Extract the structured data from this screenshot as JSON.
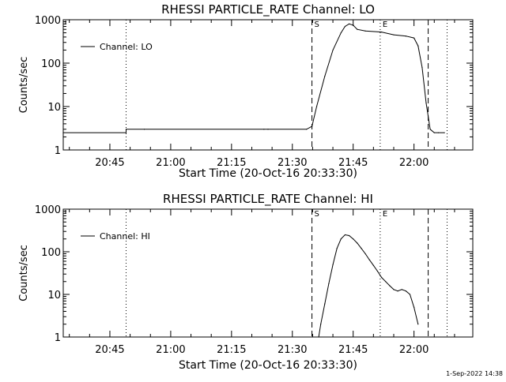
{
  "footer_timestamp": "1-Sep-2022 14:38",
  "colors": {
    "background": "#ffffff",
    "foreground": "#000000"
  },
  "chart_data": [
    {
      "type": "line",
      "title": "RHESSI PARTICLE_RATE Channel: LO",
      "xlabel": "Start Time (20-Oct-16 20:33:30)",
      "ylabel": "Counts/sec",
      "y_scale": "log",
      "ylim": [
        1,
        1000
      ],
      "xlim": [
        "20:33:30",
        "22:14:30"
      ],
      "x_ticks": [
        "20:45",
        "21:00",
        "21:15",
        "21:30",
        "21:45",
        "22:00"
      ],
      "y_ticks": [
        "1",
        "10",
        "100",
        "1000"
      ],
      "legend": {
        "label": "Channel: LO",
        "placement": "top-left"
      },
      "grid": false,
      "markers": [
        {
          "time": "20:49:00",
          "style": "dotted",
          "label": ""
        },
        {
          "time": "21:34:50",
          "style": "dashed",
          "label": "S"
        },
        {
          "time": "21:51:40",
          "style": "dotted",
          "label": "E"
        },
        {
          "time": "22:03:30",
          "style": "dashed",
          "label": ""
        },
        {
          "time": "22:08:10",
          "style": "dotted",
          "label": ""
        }
      ],
      "series": [
        {
          "name": "Channel: LO",
          "x": [
            "20:33:30",
            "20:49:00",
            "20:49:00",
            "20:53:30",
            "21:23:00",
            "21:24:00",
            "21:33:30",
            "21:34:50",
            "21:36:00",
            "21:38:00",
            "21:40:00",
            "21:42:00",
            "21:43:00",
            "21:44:00",
            "21:45:00",
            "21:46:00",
            "21:48:00",
            "21:52:00",
            "21:55:00",
            "21:58:00",
            "22:00:00",
            "22:01:00",
            "22:02:00",
            "22:03:00",
            "22:04:00",
            "22:05:00",
            "22:06:00",
            "22:07:30"
          ],
          "values": [
            2.5,
            2.5,
            3,
            3,
            3,
            3,
            3,
            3.5,
            10,
            50,
            200,
            500,
            700,
            800,
            750,
            600,
            550,
            520,
            450,
            420,
            380,
            250,
            80,
            12,
            3,
            2.5,
            2.5,
            2.5
          ]
        }
      ]
    },
    {
      "type": "line",
      "title": "RHESSI PARTICLE_RATE Channel: HI",
      "xlabel": "Start Time (20-Oct-16 20:33:30)",
      "ylabel": "Counts/sec",
      "y_scale": "log",
      "ylim": [
        1,
        1000
      ],
      "xlim": [
        "20:33:30",
        "22:14:30"
      ],
      "x_ticks": [
        "20:45",
        "21:00",
        "21:15",
        "21:30",
        "21:45",
        "22:00"
      ],
      "y_ticks": [
        "1",
        "10",
        "100",
        "1000"
      ],
      "legend": {
        "label": "Channel: HI",
        "placement": "top-left"
      },
      "grid": false,
      "markers": [
        {
          "time": "20:49:00",
          "style": "dotted",
          "label": ""
        },
        {
          "time": "21:34:50",
          "style": "dashed",
          "label": "S"
        },
        {
          "time": "21:51:40",
          "style": "dotted",
          "label": "E"
        },
        {
          "time": "22:03:30",
          "style": "dashed",
          "label": ""
        },
        {
          "time": "22:08:10",
          "style": "dotted",
          "label": ""
        }
      ],
      "series": [
        {
          "name": "Channel: HI",
          "x": [
            "21:36:30",
            "21:37:00",
            "21:38:00",
            "21:39:00",
            "21:40:00",
            "21:41:00",
            "21:42:00",
            "21:43:00",
            "21:44:00",
            "21:45:00",
            "21:46:00",
            "21:47:00",
            "21:48:00",
            "21:49:00",
            "21:50:00",
            "21:51:00",
            "21:52:00",
            "21:53:00",
            "21:54:00",
            "21:55:00",
            "21:56:00",
            "21:57:00",
            "21:58:00",
            "21:59:00",
            "22:00:00",
            "22:01:00"
          ],
          "values": [
            1,
            2,
            6,
            18,
            50,
            120,
            200,
            250,
            240,
            200,
            160,
            120,
            90,
            65,
            48,
            35,
            25,
            20,
            16,
            13,
            12,
            13,
            12,
            10,
            5,
            2
          ]
        }
      ]
    }
  ]
}
